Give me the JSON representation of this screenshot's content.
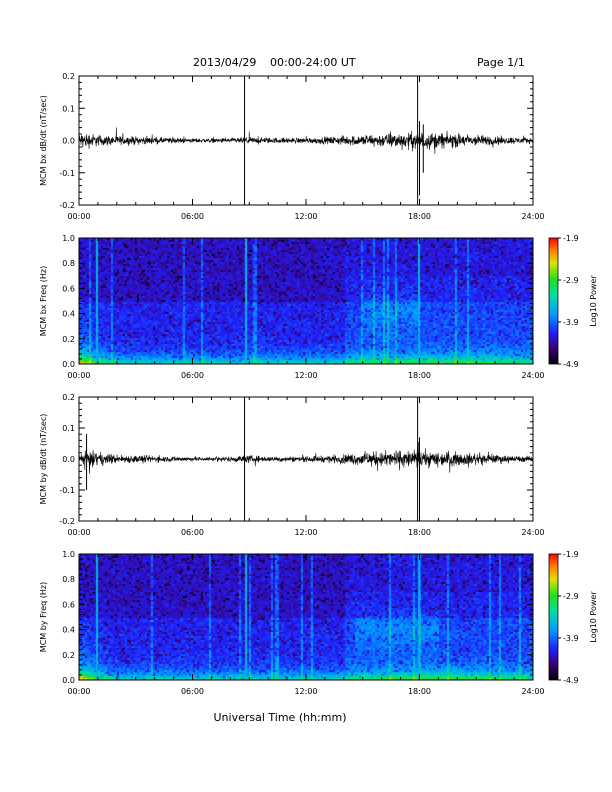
{
  "header": {
    "date": "2013/04/29",
    "range": "00:00-24:00 UT",
    "page": "Page 1/1"
  },
  "chart_data": [
    {
      "type": "line",
      "ylabel": "MCM bx dB/dt (nT/sec)",
      "xticks": [
        "00:00",
        "06:00",
        "12:00",
        "18:00",
        "24:00"
      ],
      "xlim_hours": [
        0,
        24
      ],
      "ylim": [
        -0.2,
        0.2
      ],
      "yticks": [
        "0.2",
        "0.1",
        "0.0",
        "-0.1",
        "-0.2"
      ],
      "noise_envelope": {
        "hours": [
          0,
          0.5,
          1,
          2,
          3,
          4,
          5,
          6,
          7,
          8,
          9,
          10,
          11,
          12,
          13,
          14,
          15,
          16,
          17,
          18,
          19,
          20,
          21,
          22,
          23,
          24
        ],
        "amplitude": [
          0.03,
          0.035,
          0.025,
          0.02,
          0.018,
          0.015,
          0.012,
          0.01,
          0.01,
          0.01,
          0.015,
          0.012,
          0.012,
          0.013,
          0.015,
          0.02,
          0.025,
          0.03,
          0.035,
          0.04,
          0.035,
          0.03,
          0.025,
          0.02,
          0.015,
          0.012
        ]
      },
      "spikes": [
        {
          "hour": 8.75,
          "min": -0.2,
          "max": 0.2
        },
        {
          "hour": 17.9,
          "min": -0.2,
          "max": 0.2
        },
        {
          "hour": 18.0,
          "min": -0.17,
          "max": 0.06
        },
        {
          "hour": 18.2,
          "min": -0.1,
          "max": 0.05
        }
      ]
    },
    {
      "type": "heatmap",
      "ylabel": "MCM bx Freq (Hz)",
      "xticks": [
        "00:00",
        "06:00",
        "12:00",
        "18:00",
        "24:00"
      ],
      "ylim": [
        0,
        1.0
      ],
      "yticks": [
        "1.0",
        "0.8",
        "0.6",
        "0.4",
        "0.2",
        "0.0"
      ],
      "colorbar": {
        "label": "Log10 Power",
        "range": [
          -4.9,
          -1.9
        ],
        "ticks": [
          "-1.9",
          "-2.9",
          "-3.9",
          "-4.9"
        ]
      },
      "bright_columns_hours": [
        0.9,
        8.75,
        17.9
      ],
      "mid_band": {
        "hour_start": 15.0,
        "hour_end": 18.0,
        "freq_center": 0.42
      }
    },
    {
      "type": "line",
      "ylabel": "MCM by dB/dt (nT/sec)",
      "xticks": [
        "00:00",
        "06:00",
        "12:00",
        "18:00",
        "24:00"
      ],
      "xlim_hours": [
        0,
        24
      ],
      "ylim": [
        -0.2,
        0.2
      ],
      "yticks": [
        "0.2",
        "0.1",
        "0.0",
        "-0.1",
        "-0.2"
      ],
      "noise_envelope": {
        "hours": [
          0,
          0.5,
          1,
          2,
          3,
          4,
          5,
          6,
          7,
          8,
          9,
          10,
          11,
          12,
          13,
          14,
          15,
          16,
          17,
          18,
          19,
          20,
          21,
          22,
          23,
          24
        ],
        "amplitude": [
          0.035,
          0.04,
          0.03,
          0.02,
          0.018,
          0.015,
          0.012,
          0.01,
          0.01,
          0.012,
          0.018,
          0.012,
          0.012,
          0.013,
          0.016,
          0.022,
          0.03,
          0.035,
          0.04,
          0.04,
          0.035,
          0.03,
          0.025,
          0.02,
          0.015,
          0.012
        ]
      },
      "spikes": [
        {
          "hour": 8.75,
          "min": -0.2,
          "max": 0.2
        },
        {
          "hour": 17.9,
          "min": -0.2,
          "max": 0.2
        },
        {
          "hour": 18.0,
          "min": -0.18,
          "max": 0.07
        },
        {
          "hour": 0.4,
          "min": -0.1,
          "max": 0.08
        }
      ]
    },
    {
      "type": "heatmap",
      "ylabel": "MCM by Freq (Hz)",
      "xticks": [
        "00:00",
        "06:00",
        "12:00",
        "18:00",
        "24:00"
      ],
      "ylim": [
        0,
        1.0
      ],
      "yticks": [
        "1.0",
        "0.8",
        "0.6",
        "0.4",
        "0.2",
        "0.0"
      ],
      "colorbar": {
        "label": "Log10 Power",
        "range": [
          -4.9,
          -1.9
        ],
        "ticks": [
          "-1.9",
          "-2.9",
          "-3.9",
          "-4.9"
        ]
      },
      "bright_columns_hours": [
        0.9,
        8.75,
        17.9
      ],
      "mid_band": {
        "hour_start": 14.5,
        "hour_end": 19.0,
        "freq_center": 0.4
      }
    }
  ],
  "xlabel": "Universal Time (hh:mm)"
}
